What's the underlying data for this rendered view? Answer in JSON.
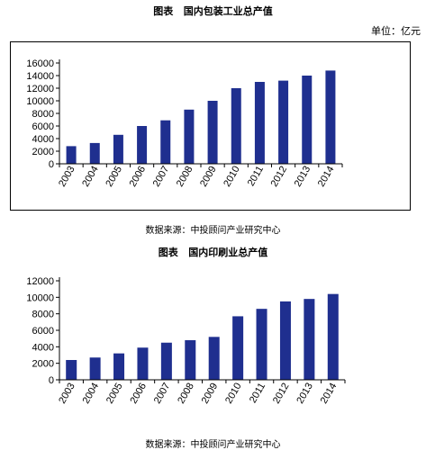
{
  "charts": [
    {
      "title": "图表   国内包装工业总产值",
      "unit": "单位：亿元",
      "source": "数据来源：中投顾问产业研究中心"
    },
    {
      "title": "图表   国内印刷业总产值",
      "source": "数据来源：中投顾问产业研究中心"
    }
  ],
  "colors": {
    "bar": "#1f2f8f",
    "axis": "#000000"
  },
  "chart_data": [
    {
      "type": "bar",
      "title": "国内包装工业总产值",
      "categories": [
        "2003",
        "2004",
        "2005",
        "2006",
        "2007",
        "2008",
        "2009",
        "2010",
        "2011",
        "2012",
        "2013",
        "2014"
      ],
      "values": [
        2800,
        3300,
        4600,
        6000,
        6900,
        8600,
        10000,
        12000,
        13000,
        13200,
        14000,
        14800
      ],
      "ylim": [
        0,
        16000
      ],
      "yticks": [
        "16000",
        "14000",
        "12000",
        "10000",
        "8000",
        "6000",
        "4000",
        "2000",
        "0"
      ],
      "grid": false,
      "legend": "none"
    },
    {
      "type": "bar",
      "title": "国内印刷业总产值",
      "categories": [
        "2003",
        "2004",
        "2005",
        "2006",
        "2007",
        "2008",
        "2009",
        "2010",
        "2011",
        "2012",
        "2013",
        "2014"
      ],
      "values": [
        2400,
        2700,
        3200,
        3900,
        4500,
        4800,
        5200,
        7700,
        8600,
        9500,
        9800,
        10400
      ],
      "ylim": [
        0,
        12000
      ],
      "yticks": [
        "12000",
        "10000",
        "8000",
        "6000",
        "4000",
        "2000",
        "0"
      ],
      "grid": false,
      "legend": "none"
    }
  ]
}
